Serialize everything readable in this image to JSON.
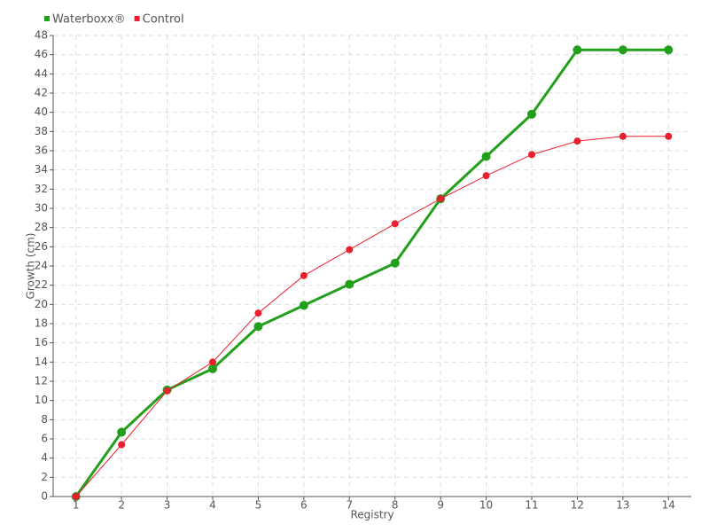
{
  "chart_data": {
    "type": "line",
    "x_label": "Registry",
    "y_label": "Growth (cm)",
    "x": [
      1,
      2,
      3,
      4,
      5,
      6,
      7,
      8,
      9,
      10,
      11,
      12,
      13,
      14
    ],
    "series": [
      {
        "name": "Waterboxx®",
        "color": "#22a01c",
        "values": [
          0,
          6.7,
          11.1,
          13.3,
          17.7,
          19.9,
          22.1,
          24.3,
          31,
          35.4,
          39.8,
          46.5,
          46.5,
          46.5
        ]
      },
      {
        "name": "Control",
        "color": "#e8202e",
        "values": [
          0,
          5.4,
          11,
          14,
          19.1,
          23,
          25.7,
          28.4,
          31,
          33.4,
          35.6,
          37,
          37.5,
          37.5
        ]
      }
    ],
    "xlim": [
      0.5,
      14.5
    ],
    "xticks": [
      1,
      2,
      3,
      4,
      5,
      6,
      7,
      8,
      9,
      10,
      11,
      12,
      13,
      14
    ],
    "ylim": [
      0,
      48
    ],
    "yticks": [
      0,
      2,
      4,
      6,
      8,
      10,
      12,
      14,
      16,
      18,
      20,
      22,
      24,
      26,
      28,
      30,
      32,
      34,
      36,
      38,
      40,
      42,
      44,
      46,
      48
    ],
    "grid": true,
    "legend": "top-left"
  }
}
